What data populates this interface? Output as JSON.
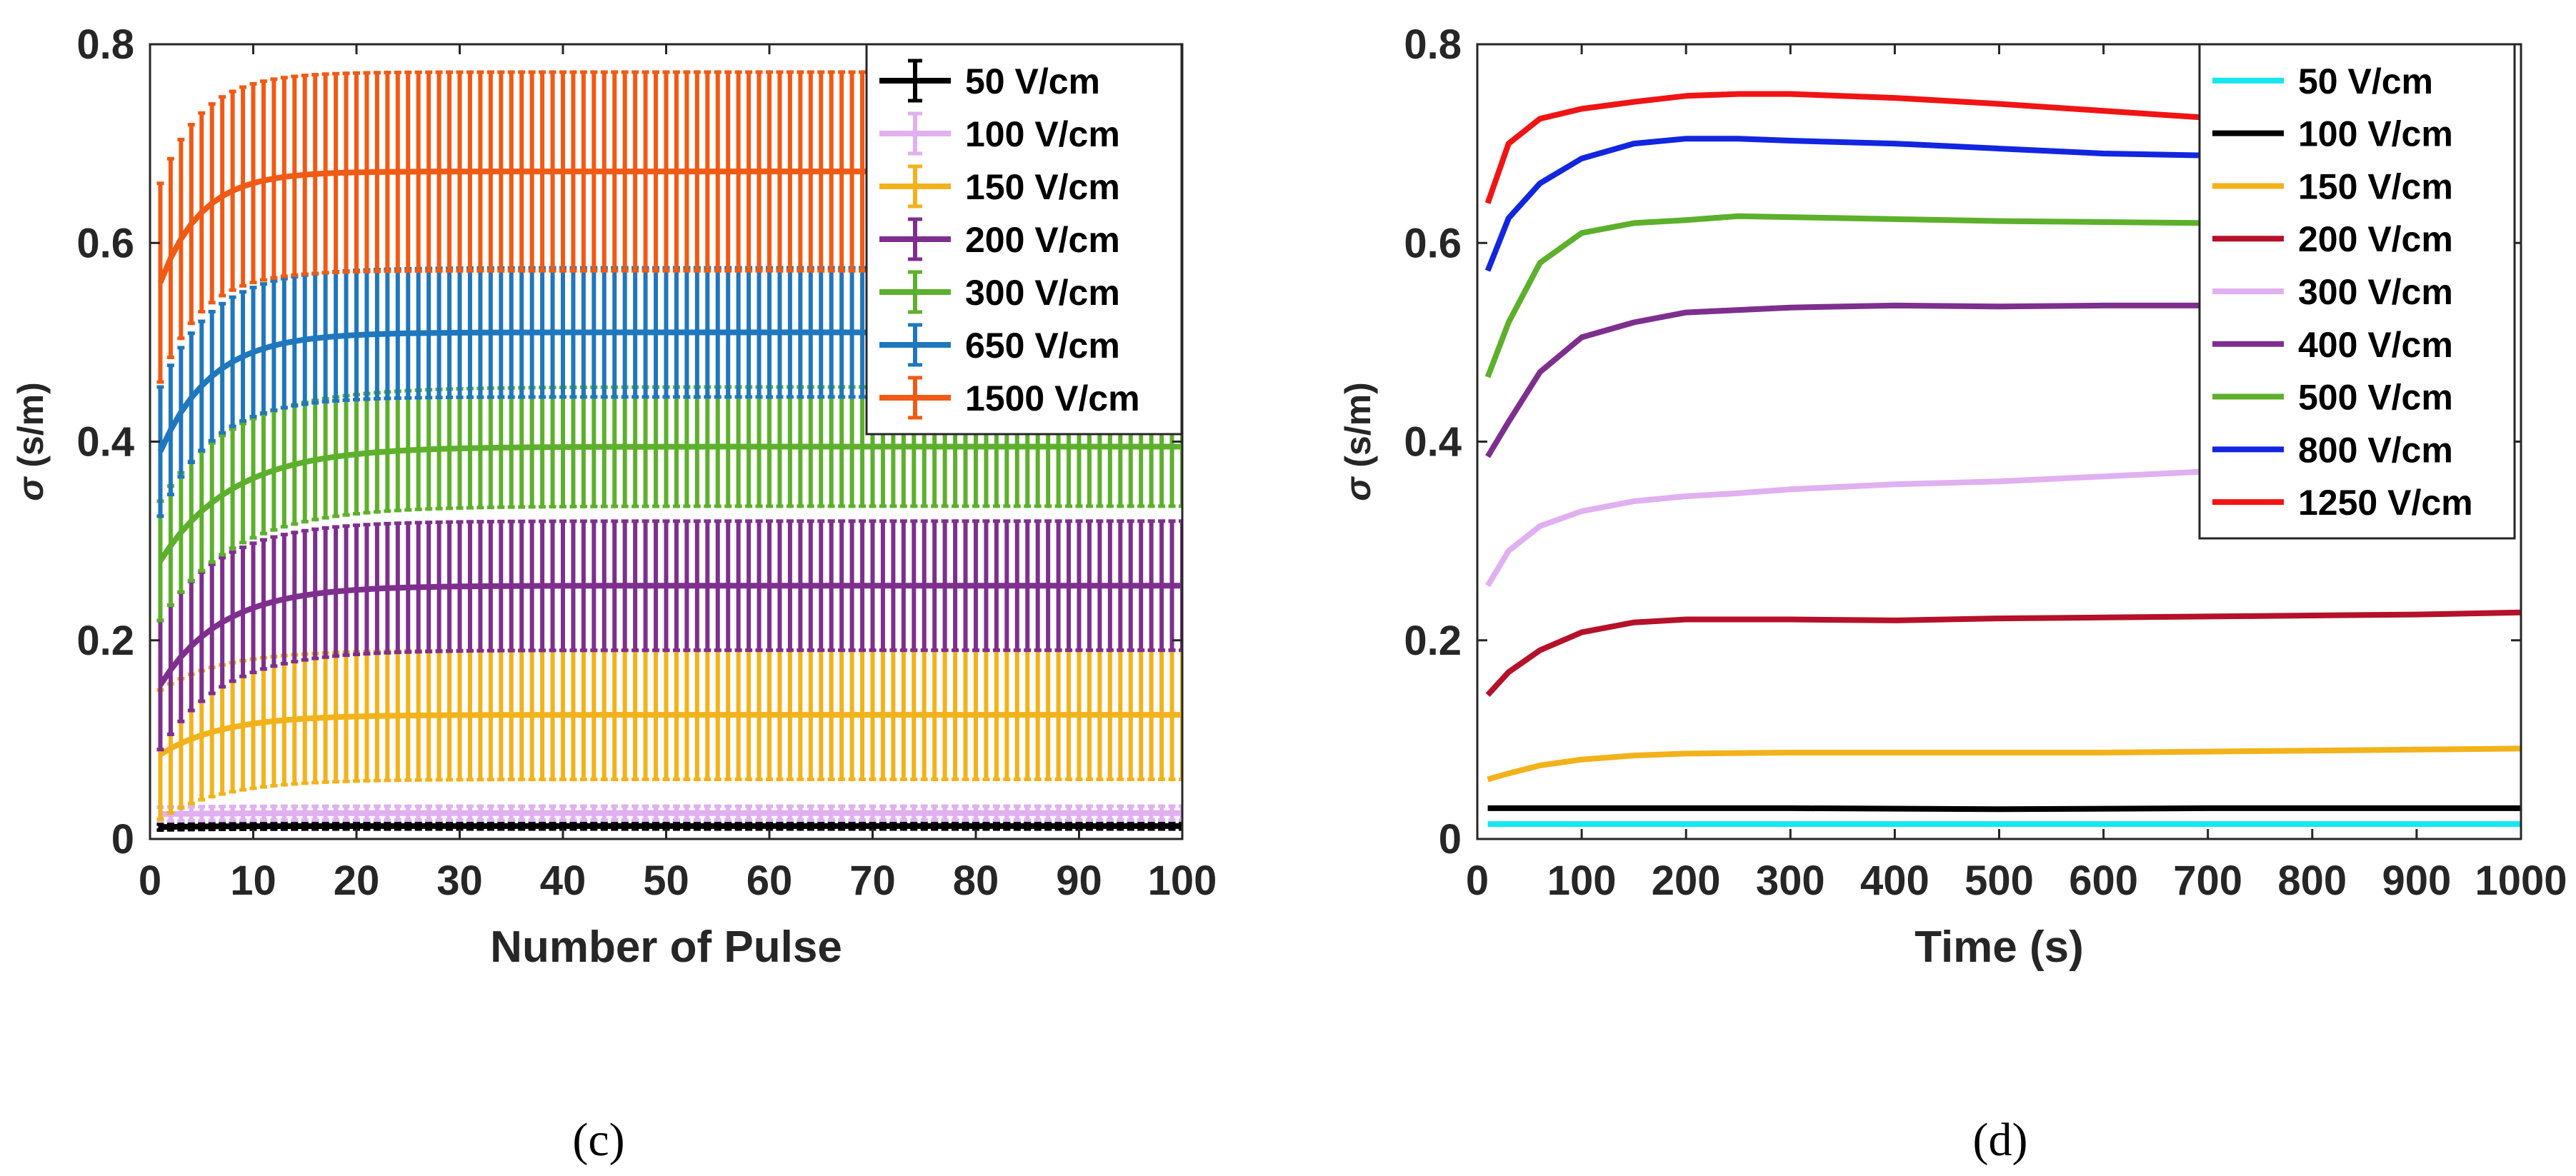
{
  "chart_data": [
    {
      "panel": "c",
      "caption": "(c)",
      "type": "line",
      "error_bars": true,
      "ylabel_symbol": "σ",
      "ylabel_units": "(s/m)",
      "xlabel": "Number of Pulse",
      "xlim": [
        0,
        100
      ],
      "ylim": [
        0,
        0.8
      ],
      "xticks": [
        "0",
        "10",
        "20",
        "30",
        "40",
        "50",
        "60",
        "70",
        "80",
        "90",
        "100"
      ],
      "yticks": [
        "0",
        "0.2",
        "0.4",
        "0.6",
        "0.8"
      ],
      "legend_position": "top-right",
      "series": [
        {
          "name": "50 V/cm",
          "color": "#000000",
          "mean": {
            "start": 0.012,
            "end": 0.013,
            "tau": 5
          },
          "err": 0.003
        },
        {
          "name": "100 V/cm",
          "color": "#e0b0f0",
          "mean": {
            "start": 0.025,
            "end": 0.026,
            "tau": 5
          },
          "err": 0.007
        },
        {
          "name": "150 V/cm",
          "color": "#f2b21b",
          "mean": {
            "start": 0.085,
            "end": 0.125,
            "tau": 6
          },
          "err": 0.065
        },
        {
          "name": "200 V/cm",
          "color": "#7e2f8e",
          "mean": {
            "start": 0.155,
            "end": 0.255,
            "tau": 6
          },
          "err": 0.065
        },
        {
          "name": "300 V/cm",
          "color": "#5db02c",
          "mean": {
            "start": 0.28,
            "end": 0.395,
            "tau": 7
          },
          "err": 0.06
        },
        {
          "name": "650 V/cm",
          "color": "#1f77bd",
          "mean": {
            "start": 0.39,
            "end": 0.51,
            "tau": 5
          },
          "err": 0.065
        },
        {
          "name": "1500 V/cm",
          "color": "#f05a14",
          "mean": {
            "start": 0.56,
            "end": 0.672,
            "tau": 4
          },
          "err": 0.1
        }
      ]
    },
    {
      "panel": "d",
      "caption": "(d)",
      "type": "line",
      "ylabel_symbol": "σ",
      "ylabel_units": "(s/m)",
      "xlabel": "Time (s)",
      "xlim": [
        0,
        1000
      ],
      "ylim": [
        0,
        0.8
      ],
      "xticks": [
        "0",
        "100",
        "200",
        "300",
        "400",
        "500",
        "600",
        "700",
        "800",
        "900",
        "1000"
      ],
      "yticks": [
        "0",
        "0.2",
        "0.4",
        "0.6",
        "0.8"
      ],
      "legend_position": "top-right",
      "series": [
        {
          "name": "50 V/cm",
          "color": "#16e6f0",
          "x": [
            10,
            1000
          ],
          "y": [
            0.015,
            0.015
          ]
        },
        {
          "name": "100 V/cm",
          "color": "#000000",
          "x": [
            10,
            100,
            300,
            500,
            700,
            1000
          ],
          "y": [
            0.031,
            0.031,
            0.031,
            0.03,
            0.031,
            0.031
          ]
        },
        {
          "name": "150 V/cm",
          "color": "#f2b21b",
          "x": [
            10,
            30,
            60,
            100,
            150,
            200,
            300,
            400,
            500,
            600,
            700,
            800,
            900,
            1000
          ],
          "y": [
            0.06,
            0.066,
            0.074,
            0.08,
            0.084,
            0.086,
            0.087,
            0.087,
            0.087,
            0.087,
            0.088,
            0.089,
            0.09,
            0.091
          ]
        },
        {
          "name": "200 V/cm",
          "color": "#b5112a",
          "x": [
            10,
            30,
            60,
            100,
            150,
            200,
            300,
            400,
            500,
            600,
            700,
            800,
            900,
            1000
          ],
          "y": [
            0.145,
            0.168,
            0.19,
            0.208,
            0.218,
            0.221,
            0.221,
            0.22,
            0.222,
            0.223,
            0.224,
            0.225,
            0.226,
            0.228
          ]
        },
        {
          "name": "300 V/cm",
          "color": "#e0b0f0",
          "x": [
            10,
            30,
            60,
            100,
            150,
            200,
            250,
            300,
            400,
            500,
            600,
            700
          ],
          "y": [
            0.255,
            0.29,
            0.315,
            0.33,
            0.34,
            0.345,
            0.348,
            0.352,
            0.357,
            0.36,
            0.365,
            0.37
          ]
        },
        {
          "name": "400 V/cm",
          "color": "#7e2f8e",
          "x": [
            10,
            30,
            60,
            100,
            150,
            200,
            300,
            400,
            500,
            600,
            700
          ],
          "y": [
            0.385,
            0.42,
            0.47,
            0.505,
            0.52,
            0.53,
            0.535,
            0.537,
            0.536,
            0.537,
            0.537
          ]
        },
        {
          "name": "500 V/cm",
          "color": "#5db02c",
          "x": [
            10,
            30,
            60,
            100,
            150,
            200,
            250,
            300,
            400,
            500,
            600,
            700
          ],
          "y": [
            0.465,
            0.52,
            0.58,
            0.61,
            0.62,
            0.623,
            0.627,
            0.626,
            0.624,
            0.622,
            0.621,
            0.62
          ]
        },
        {
          "name": "800 V/cm",
          "color": "#1226e0",
          "x": [
            10,
            30,
            60,
            100,
            150,
            200,
            250,
            300,
            400,
            500,
            600,
            700
          ],
          "y": [
            0.572,
            0.625,
            0.66,
            0.685,
            0.7,
            0.705,
            0.705,
            0.703,
            0.7,
            0.695,
            0.69,
            0.688
          ]
        },
        {
          "name": "1250 V/cm",
          "color": "#f01414",
          "x": [
            10,
            30,
            60,
            100,
            150,
            200,
            250,
            300,
            400,
            500,
            600,
            700
          ],
          "y": [
            0.64,
            0.7,
            0.725,
            0.735,
            0.742,
            0.748,
            0.75,
            0.75,
            0.746,
            0.74,
            0.733,
            0.726
          ]
        }
      ]
    }
  ]
}
